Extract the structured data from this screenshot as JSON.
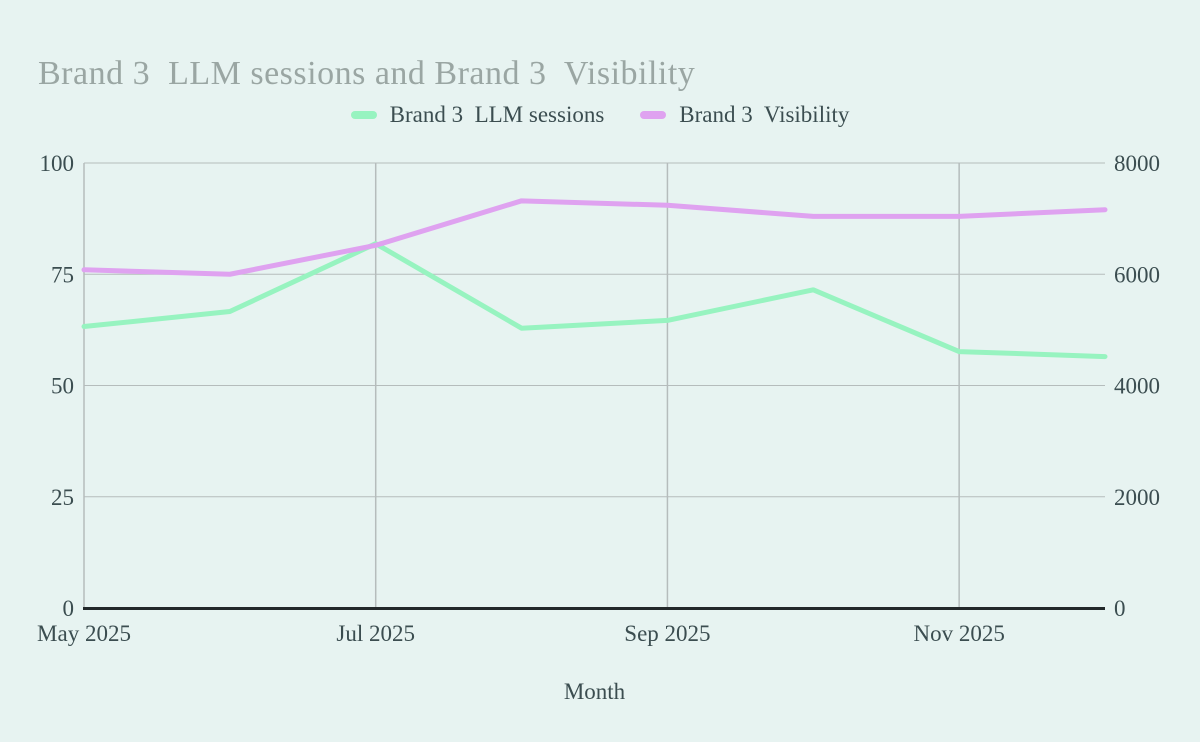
{
  "chart_data": {
    "type": "line",
    "title": "Brand 3  LLM sessions and Brand 3  Visibility",
    "xlabel": "Month",
    "x": [
      "May 2025",
      "Jun 2025",
      "Jul 2025",
      "Aug 2025",
      "Sep 2025",
      "Oct 2025",
      "Nov 2025",
      "Dec 2025"
    ],
    "x_tick_indices": [
      0,
      2,
      4,
      6
    ],
    "x_grid_indices": [
      2,
      4,
      6
    ],
    "left_axis": {
      "min": 0,
      "max": 100,
      "ticks": [
        0,
        25,
        50,
        75,
        100
      ]
    },
    "right_axis": {
      "min": 0,
      "max": 8000,
      "ticks": [
        0,
        2000,
        4000,
        6000,
        8000
      ]
    },
    "grid": true,
    "legend_position": "top-center",
    "series": [
      {
        "name": "Brand 3  LLM sessions",
        "color": "#97f3c0",
        "axis": "right",
        "values": [
          5060,
          5330,
          6550,
          5030,
          5170,
          5720,
          4610,
          4520
        ]
      },
      {
        "name": "Brand 3  Visibility",
        "color": "#dfa2f0",
        "axis": "left",
        "values": [
          76,
          75,
          81.5,
          91.5,
          90.5,
          88,
          88,
          89.5
        ]
      }
    ]
  },
  "colors": {
    "background": "#e7f3f1",
    "grid": "#b5bcbc",
    "axis_line": "#22282a",
    "tick_text": "#3b4d50",
    "title_text": "#9aa6a3"
  }
}
